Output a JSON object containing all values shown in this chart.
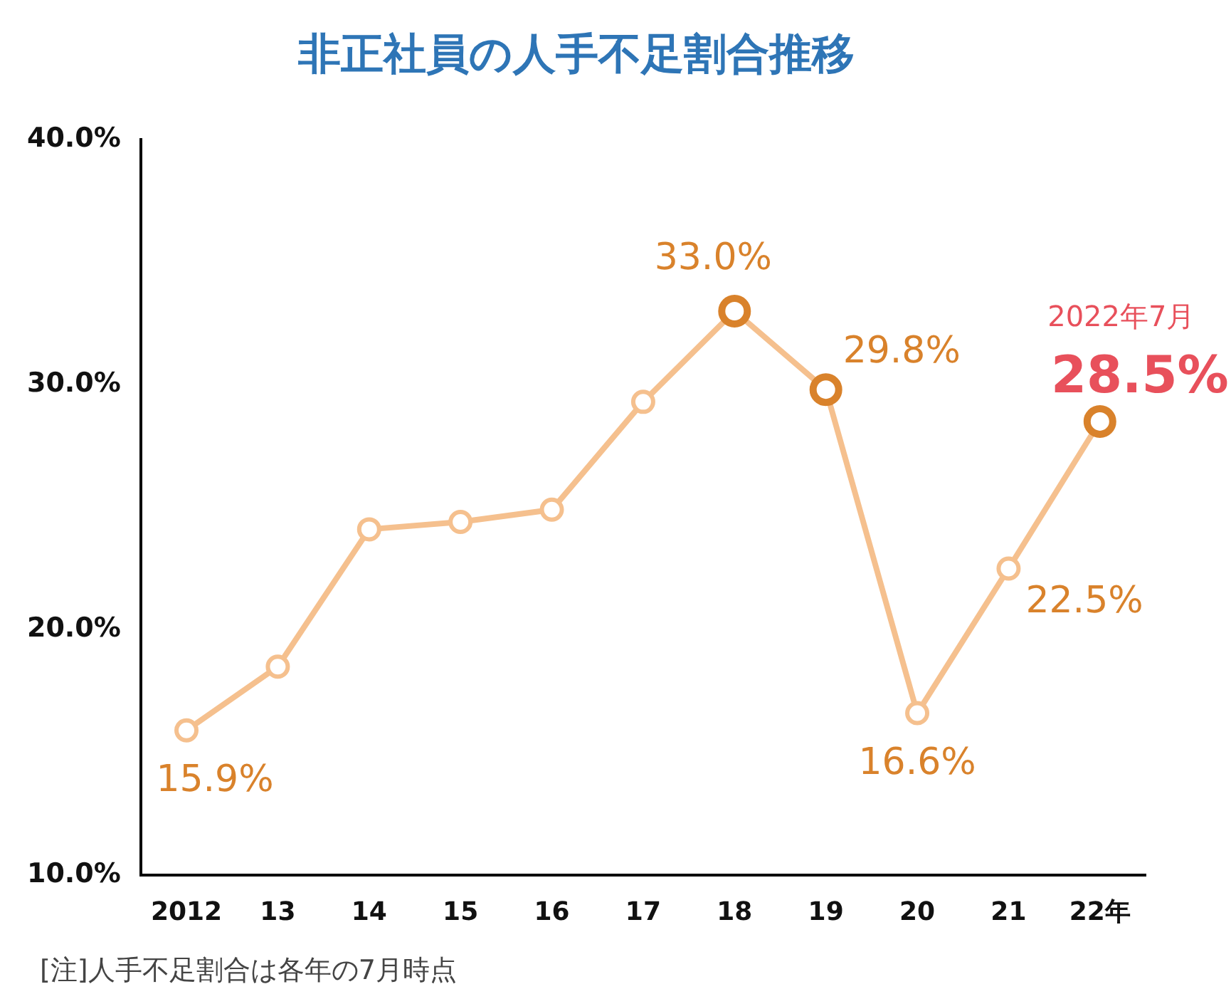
{
  "chart_data": {
    "type": "line",
    "title": "非正社員の人手不足割合推移",
    "categories": [
      "2012",
      "13",
      "14",
      "15",
      "16",
      "17",
      "18",
      "19",
      "20",
      "21",
      "22年"
    ],
    "series": [
      {
        "color": "#f5c08e",
        "values": [
          15.9,
          18.5,
          24.1,
          24.4,
          24.9,
          29.3,
          33.0,
          29.8,
          16.6,
          22.5,
          28.5
        ],
        "colors": [
          "#f5c08e",
          "#f5c08e",
          "#f5c08e",
          "#f5c08e",
          "#f5c08e",
          "#f5c08e",
          "#d9822b",
          "#d9822b",
          "#f5c08e",
          "#f5c08e",
          "#d9822b"
        ],
        "value_labels": [
          "15.9%",
          null,
          null,
          null,
          null,
          null,
          "33.0%",
          "29.8%",
          "16.6%",
          "22.5%",
          "28.5%"
        ]
      }
    ],
    "ylim": [
      10,
      40
    ],
    "yticks": [
      {
        "value": 10,
        "label": "10.0%"
      },
      {
        "value": 20,
        "label": "20.0%"
      },
      {
        "value": 30,
        "label": "30.0%"
      },
      {
        "value": 40,
        "label": "40.0%"
      }
    ],
    "grid": false,
    "legend": false,
    "marker": "circle",
    "line_style": "solid",
    "annotations": [
      "2022年7月",
      "[注]人手不足割合は各年の7月時点"
    ]
  }
}
